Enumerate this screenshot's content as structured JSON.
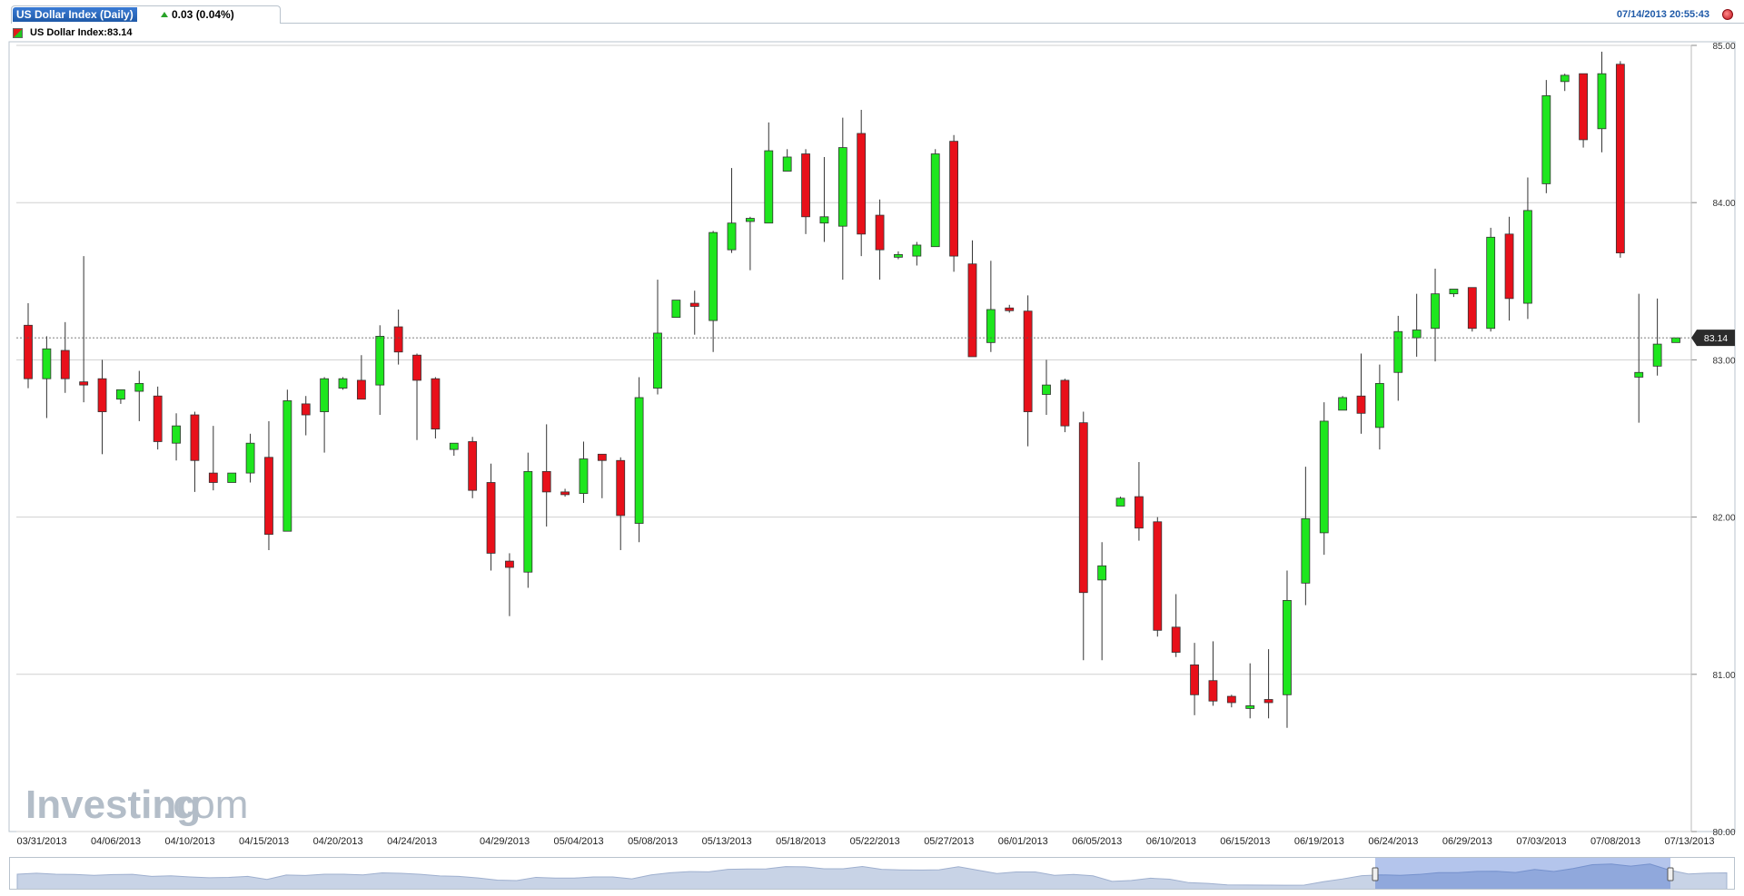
{
  "header": {
    "title": "US Dollar Index (Daily)",
    "change": "0.03 (0.04%)",
    "timestamp": "07/14/2013 20:55:43",
    "legend": "US Dollar Index:83.14"
  },
  "watermark": {
    "part1": "Investing",
    "part2": ".com"
  },
  "colors": {
    "up": "#1ee61e",
    "down": "#e8101a",
    "grid": "#d0d0d0",
    "accent": "#1f5aa8"
  },
  "chart_data": {
    "type": "candlestick",
    "title": "US Dollar Index (Daily)",
    "xlabel": "",
    "ylabel": "",
    "ylim": [
      80.0,
      85.0
    ],
    "y_ticks": [
      "85.00",
      "84.00",
      "83.00",
      "82.00",
      "81.00",
      "80.00"
    ],
    "last_value": 83.14,
    "last_value_label": "83.14",
    "x_tick_labels": [
      {
        "label": "03/31/2013",
        "index": 0
      },
      {
        "label": "04/06/2013",
        "index": 4
      },
      {
        "label": "04/10/2013",
        "index": 8
      },
      {
        "label": "04/15/2013",
        "index": 12
      },
      {
        "label": "04/20/2013",
        "index": 16
      },
      {
        "label": "04/24/2013",
        "index": 20
      },
      {
        "label": "04/29/2013",
        "index": 25
      },
      {
        "label": "05/04/2013",
        "index": 29
      },
      {
        "label": "05/08/2013",
        "index": 33
      },
      {
        "label": "05/13/2013",
        "index": 37
      },
      {
        "label": "05/18/2013",
        "index": 41
      },
      {
        "label": "05/22/2013",
        "index": 45
      },
      {
        "label": "05/27/2013",
        "index": 49
      },
      {
        "label": "06/01/2013",
        "index": 53
      },
      {
        "label": "06/05/2013",
        "index": 57
      },
      {
        "label": "06/10/2013",
        "index": 61
      },
      {
        "label": "06/15/2013",
        "index": 65
      },
      {
        "label": "06/19/2013",
        "index": 69
      },
      {
        "label": "06/24/2013",
        "index": 73
      },
      {
        "label": "06/29/2013",
        "index": 77
      },
      {
        "label": "07/03/2013",
        "index": 81
      },
      {
        "label": "07/08/2013",
        "index": 85
      },
      {
        "label": "07/13/2013",
        "index": 89
      }
    ],
    "ohlc": [
      {
        "o": 83.22,
        "h": 83.36,
        "l": 82.82,
        "c": 82.88
      },
      {
        "o": 82.88,
        "h": 83.15,
        "l": 82.63,
        "c": 83.07
      },
      {
        "o": 83.06,
        "h": 83.24,
        "l": 82.79,
        "c": 82.88
      },
      {
        "o": 82.86,
        "h": 83.66,
        "l": 82.73,
        "c": 82.84
      },
      {
        "o": 82.88,
        "h": 83.0,
        "l": 82.4,
        "c": 82.67
      },
      {
        "o": 82.75,
        "h": 82.81,
        "l": 82.72,
        "c": 82.81
      },
      {
        "o": 82.8,
        "h": 82.93,
        "l": 82.61,
        "c": 82.85
      },
      {
        "o": 82.77,
        "h": 82.83,
        "l": 82.43,
        "c": 82.48
      },
      {
        "o": 82.47,
        "h": 82.66,
        "l": 82.36,
        "c": 82.58
      },
      {
        "o": 82.65,
        "h": 82.67,
        "l": 82.16,
        "c": 82.36
      },
      {
        "o": 82.28,
        "h": 82.58,
        "l": 82.17,
        "c": 82.22
      },
      {
        "o": 82.22,
        "h": 82.28,
        "l": 82.22,
        "c": 82.28
      },
      {
        "o": 82.28,
        "h": 82.53,
        "l": 82.22,
        "c": 82.47
      },
      {
        "o": 82.38,
        "h": 82.61,
        "l": 81.79,
        "c": 81.89
      },
      {
        "o": 81.91,
        "h": 82.81,
        "l": 81.91,
        "c": 82.74
      },
      {
        "o": 82.72,
        "h": 82.77,
        "l": 82.52,
        "c": 82.65
      },
      {
        "o": 82.67,
        "h": 82.89,
        "l": 82.41,
        "c": 82.88
      },
      {
        "o": 82.82,
        "h": 82.89,
        "l": 82.81,
        "c": 82.88
      },
      {
        "o": 82.87,
        "h": 83.03,
        "l": 82.75,
        "c": 82.75
      },
      {
        "o": 82.84,
        "h": 83.22,
        "l": 82.65,
        "c": 83.15
      },
      {
        "o": 83.21,
        "h": 83.32,
        "l": 82.97,
        "c": 83.05
      },
      {
        "o": 83.03,
        "h": 83.04,
        "l": 82.49,
        "c": 82.87
      },
      {
        "o": 82.88,
        "h": 82.89,
        "l": 82.5,
        "c": 82.56
      },
      {
        "o": 82.43,
        "h": 82.47,
        "l": 82.39,
        "c": 82.47
      },
      {
        "o": 82.48,
        "h": 82.51,
        "l": 82.12,
        "c": 82.17
      },
      {
        "o": 82.22,
        "h": 82.34,
        "l": 81.66,
        "c": 81.77
      },
      {
        "o": 81.72,
        "h": 81.77,
        "l": 81.37,
        "c": 81.68
      },
      {
        "o": 81.65,
        "h": 82.41,
        "l": 81.55,
        "c": 82.29
      },
      {
        "o": 82.29,
        "h": 82.59,
        "l": 81.94,
        "c": 82.16
      },
      {
        "o": 82.16,
        "h": 82.18,
        "l": 82.13,
        "c": 82.15
      },
      {
        "o": 82.15,
        "h": 82.48,
        "l": 82.09,
        "c": 82.37
      },
      {
        "o": 82.4,
        "h": 82.4,
        "l": 82.12,
        "c": 82.36
      },
      {
        "o": 82.36,
        "h": 82.38,
        "l": 81.79,
        "c": 82.01
      },
      {
        "o": 81.96,
        "h": 82.89,
        "l": 81.84,
        "c": 82.76
      },
      {
        "o": 82.82,
        "h": 83.51,
        "l": 82.78,
        "c": 83.17
      },
      {
        "o": 83.27,
        "h": 83.38,
        "l": 83.27,
        "c": 83.38
      },
      {
        "o": 83.36,
        "h": 83.44,
        "l": 83.16,
        "c": 83.34
      },
      {
        "o": 83.25,
        "h": 83.82,
        "l": 83.05,
        "c": 83.81
      },
      {
        "o": 83.7,
        "h": 84.22,
        "l": 83.68,
        "c": 83.87
      },
      {
        "o": 83.88,
        "h": 83.91,
        "l": 83.57,
        "c": 83.9
      },
      {
        "o": 83.87,
        "h": 84.51,
        "l": 83.87,
        "c": 84.33
      },
      {
        "o": 84.2,
        "h": 84.34,
        "l": 84.2,
        "c": 84.29
      },
      {
        "o": 84.31,
        "h": 84.34,
        "l": 83.8,
        "c": 83.91
      },
      {
        "o": 83.87,
        "h": 84.29,
        "l": 83.75,
        "c": 83.91
      },
      {
        "o": 83.85,
        "h": 84.54,
        "l": 83.51,
        "c": 84.35
      },
      {
        "o": 84.44,
        "h": 84.59,
        "l": 83.66,
        "c": 83.8
      },
      {
        "o": 83.92,
        "h": 84.02,
        "l": 83.51,
        "c": 83.7
      },
      {
        "o": 83.66,
        "h": 83.69,
        "l": 83.64,
        "c": 83.67
      },
      {
        "o": 83.66,
        "h": 83.75,
        "l": 83.6,
        "c": 83.73
      },
      {
        "o": 83.72,
        "h": 84.34,
        "l": 83.72,
        "c": 84.31
      },
      {
        "o": 84.39,
        "h": 84.43,
        "l": 83.56,
        "c": 83.66
      },
      {
        "o": 83.61,
        "h": 83.76,
        "l": 83.04,
        "c": 83.02
      },
      {
        "o": 83.11,
        "h": 83.63,
        "l": 83.05,
        "c": 83.32
      },
      {
        "o": 83.33,
        "h": 83.35,
        "l": 83.3,
        "c": 83.32
      },
      {
        "o": 83.31,
        "h": 83.41,
        "l": 82.45,
        "c": 82.67
      },
      {
        "o": 82.78,
        "h": 83.0,
        "l": 82.65,
        "c": 82.84
      },
      {
        "o": 82.87,
        "h": 82.88,
        "l": 82.54,
        "c": 82.58
      },
      {
        "o": 82.6,
        "h": 82.67,
        "l": 81.09,
        "c": 81.52
      },
      {
        "o": 81.6,
        "h": 81.84,
        "l": 81.09,
        "c": 81.69
      },
      {
        "o": 82.07,
        "h": 82.13,
        "l": 82.07,
        "c": 82.12
      },
      {
        "o": 82.13,
        "h": 82.35,
        "l": 81.85,
        "c": 81.93
      },
      {
        "o": 81.97,
        "h": 82.0,
        "l": 81.24,
        "c": 81.28
      },
      {
        "o": 81.3,
        "h": 81.51,
        "l": 81.11,
        "c": 81.14
      },
      {
        "o": 81.06,
        "h": 81.2,
        "l": 80.74,
        "c": 80.87
      },
      {
        "o": 80.96,
        "h": 81.21,
        "l": 80.8,
        "c": 80.83
      },
      {
        "o": 80.86,
        "h": 80.87,
        "l": 80.79,
        "c": 80.82
      },
      {
        "o": 80.8,
        "h": 81.07,
        "l": 80.72,
        "c": 80.8
      },
      {
        "o": 80.84,
        "h": 81.16,
        "l": 80.72,
        "c": 80.82
      },
      {
        "o": 80.87,
        "h": 81.66,
        "l": 80.66,
        "c": 81.47
      },
      {
        "o": 81.58,
        "h": 82.32,
        "l": 81.44,
        "c": 81.99
      },
      {
        "o": 81.9,
        "h": 82.73,
        "l": 81.76,
        "c": 82.61
      },
      {
        "o": 82.68,
        "h": 82.77,
        "l": 82.68,
        "c": 82.76
      },
      {
        "o": 82.77,
        "h": 83.04,
        "l": 82.53,
        "c": 82.66
      },
      {
        "o": 82.57,
        "h": 82.97,
        "l": 82.43,
        "c": 82.85
      },
      {
        "o": 82.92,
        "h": 83.28,
        "l": 82.74,
        "c": 83.18
      },
      {
        "o": 83.14,
        "h": 83.42,
        "l": 83.02,
        "c": 83.19
      },
      {
        "o": 83.2,
        "h": 83.58,
        "l": 82.99,
        "c": 83.42
      },
      {
        "o": 83.42,
        "h": 83.45,
        "l": 83.4,
        "c": 83.45
      },
      {
        "o": 83.46,
        "h": 83.46,
        "l": 83.18,
        "c": 83.2
      },
      {
        "o": 83.2,
        "h": 83.84,
        "l": 83.18,
        "c": 83.78
      },
      {
        "o": 83.8,
        "h": 83.91,
        "l": 83.25,
        "c": 83.39
      },
      {
        "o": 83.36,
        "h": 84.16,
        "l": 83.26,
        "c": 83.95
      },
      {
        "o": 84.12,
        "h": 84.78,
        "l": 84.06,
        "c": 84.68
      },
      {
        "o": 84.77,
        "h": 84.82,
        "l": 84.71,
        "c": 84.81
      },
      {
        "o": 84.82,
        "h": 84.82,
        "l": 84.35,
        "c": 84.4
      },
      {
        "o": 84.47,
        "h": 84.96,
        "l": 84.32,
        "c": 84.82
      },
      {
        "o": 84.88,
        "h": 84.9,
        "l": 83.65,
        "c": 83.68
      },
      {
        "o": 82.89,
        "h": 83.42,
        "l": 82.6,
        "c": 82.92
      },
      {
        "o": 82.96,
        "h": 83.39,
        "l": 82.9,
        "c": 83.1
      },
      {
        "o": 83.11,
        "h": 83.14,
        "l": 83.11,
        "c": 83.14
      }
    ]
  }
}
